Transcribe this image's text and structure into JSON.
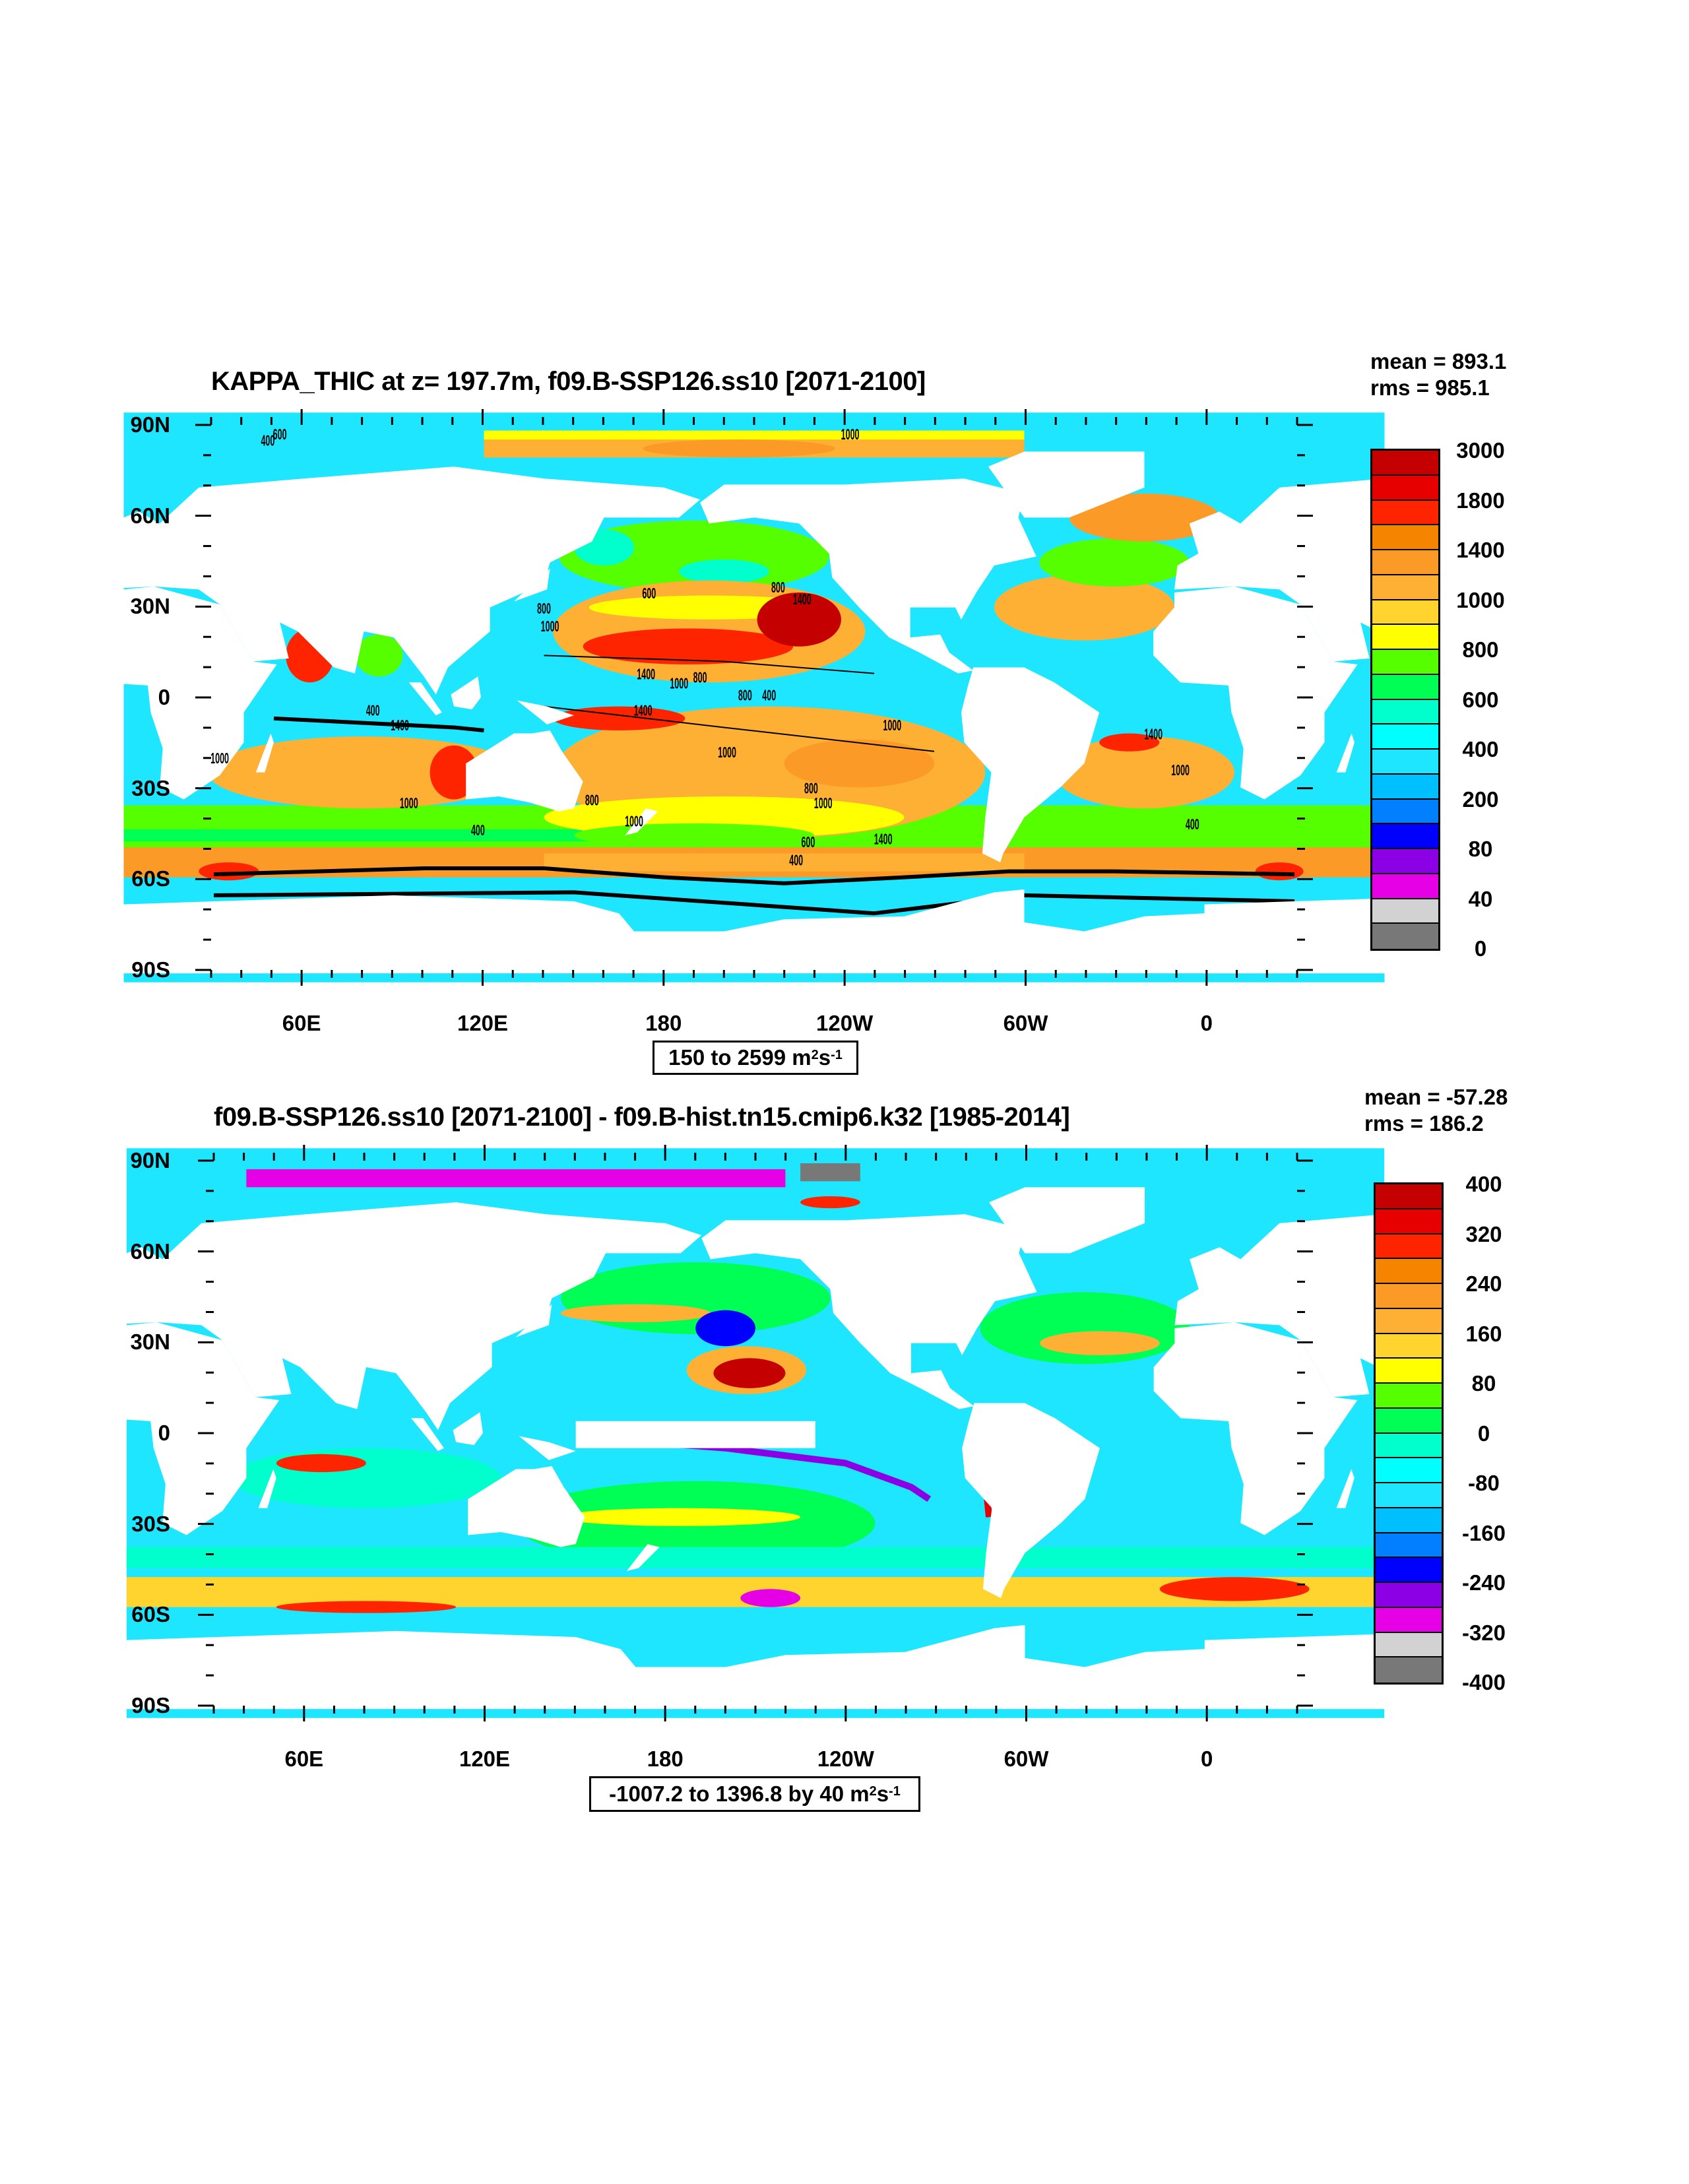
{
  "chart_data": [
    {
      "type": "heatmap",
      "subtype": "global ocean contour map",
      "title": "KAPPA_THIC at z= 197.7m, f09.B-SSP126.ss10 [2071-2100]",
      "stats": {
        "mean": "mean = 893.1",
        "rms": "rms = 985.1"
      },
      "xlim": [
        30,
        390
      ],
      "ylim": [
        -90,
        90
      ],
      "x_ticks": [
        "60E",
        "120E",
        "180",
        "120W",
        "60W",
        "0"
      ],
      "x_tick_lons": [
        60,
        120,
        180,
        240,
        300,
        360
      ],
      "y_ticks": [
        "90N",
        "60N",
        "30N",
        "0",
        "30S",
        "60S",
        "90S"
      ],
      "y_tick_lats": [
        90,
        60,
        30,
        0,
        -30,
        -60,
        -90
      ],
      "range_label": {
        "text": "150 to 2599 m",
        "sup1": "2",
        "unit2": " s",
        "sup2": "-1"
      },
      "colorbar": {
        "labels": [
          "3000",
          "1800",
          "1400",
          "1000",
          "800",
          "600",
          "400",
          "200",
          "80",
          "40",
          "0"
        ],
        "colors": [
          "#c40000",
          "#e60000",
          "#ff2400",
          "#f58400",
          "#fb9a26",
          "#fdb033",
          "#ffd42e",
          "#ffff00",
          "#55ff00",
          "#00ff55",
          "#00ffcc",
          "#00ffff",
          "#1ee6ff",
          "#00bfff",
          "#0080ff",
          "#0000ff",
          "#8c00e6",
          "#e600e6",
          "#d2d2d2",
          "#787878"
        ]
      },
      "contour_labels": [
        {
          "text": "400",
          "lon": 48,
          "lat": 84
        },
        {
          "text": "600",
          "lon": 52,
          "lat": 86
        },
        {
          "text": "1000",
          "lon": 242,
          "lat": 86
        },
        {
          "text": "800",
          "lon": 140,
          "lat": 28
        },
        {
          "text": "600",
          "lon": 175,
          "lat": 33
        },
        {
          "text": "800",
          "lon": 218,
          "lat": 35
        },
        {
          "text": "1400",
          "lon": 226,
          "lat": 31
        },
        {
          "text": "1000",
          "lon": 142,
          "lat": 22
        },
        {
          "text": "1400",
          "lon": 174,
          "lat": 6
        },
        {
          "text": "1000",
          "lon": 185,
          "lat": 3
        },
        {
          "text": "800",
          "lon": 192,
          "lat": 5
        },
        {
          "text": "800",
          "lon": 207,
          "lat": -1
        },
        {
          "text": "400",
          "lon": 215,
          "lat": -1
        },
        {
          "text": "400",
          "lon": 83,
          "lat": -6
        },
        {
          "text": "1400",
          "lon": 92,
          "lat": -11
        },
        {
          "text": "1400",
          "lon": 173,
          "lat": -6
        },
        {
          "text": "1000",
          "lon": 256,
          "lat": -11
        },
        {
          "text": "1000",
          "lon": 201,
          "lat": -20
        },
        {
          "text": "1400",
          "lon": 343,
          "lat": -14
        },
        {
          "text": "1000",
          "lon": 32,
          "lat": -22
        },
        {
          "text": "1000",
          "lon": 352,
          "lat": -26
        },
        {
          "text": "800",
          "lon": 229,
          "lat": -32
        },
        {
          "text": "1000",
          "lon": 233,
          "lat": -37
        },
        {
          "text": "1000",
          "lon": 95,
          "lat": -37
        },
        {
          "text": "800",
          "lon": 156,
          "lat": -36
        },
        {
          "text": "1000",
          "lon": 170,
          "lat": -43
        },
        {
          "text": "400",
          "lon": 118,
          "lat": -46
        },
        {
          "text": "1400",
          "lon": 253,
          "lat": -49
        },
        {
          "text": "600",
          "lon": 228,
          "lat": -50
        },
        {
          "text": "400",
          "lon": 224,
          "lat": -56
        },
        {
          "text": "400",
          "lon": 356,
          "lat": -44
        }
      ]
    },
    {
      "type": "heatmap",
      "subtype": "global ocean difference map",
      "title": "f09.B-SSP126.ss10 [2071-2100] - f09.B-hist.tn15.cmip6.k32 [1985-2014]",
      "stats": {
        "mean": "mean = -57.28",
        "rms": "rms = 186.2"
      },
      "xlim": [
        30,
        390
      ],
      "ylim": [
        -90,
        90
      ],
      "x_ticks": [
        "60E",
        "120E",
        "180",
        "120W",
        "60W",
        "0"
      ],
      "x_tick_lons": [
        60,
        120,
        180,
        240,
        300,
        360
      ],
      "y_ticks": [
        "90N",
        "60N",
        "30N",
        "0",
        "30S",
        "60S",
        "90S"
      ],
      "y_tick_lats": [
        90,
        60,
        30,
        0,
        -30,
        -60,
        -90
      ],
      "range_label": {
        "text": "-1007.2 to 1396.8 by 40 m",
        "sup1": "2",
        "unit2": " s",
        "sup2": "-1"
      },
      "colorbar": {
        "labels": [
          "400",
          "320",
          "240",
          "160",
          "80",
          "0",
          "-80",
          "-160",
          "-240",
          "-320",
          "-400"
        ],
        "colors": [
          "#c40000",
          "#e60000",
          "#ff2400",
          "#f58400",
          "#fb9a26",
          "#fdb033",
          "#ffd42e",
          "#ffff00",
          "#55ff00",
          "#00ff55",
          "#00ffcc",
          "#00ffff",
          "#1ee6ff",
          "#00bfff",
          "#0080ff",
          "#0000ff",
          "#8c00e6",
          "#e600e6",
          "#d2d2d2",
          "#787878"
        ]
      }
    }
  ]
}
